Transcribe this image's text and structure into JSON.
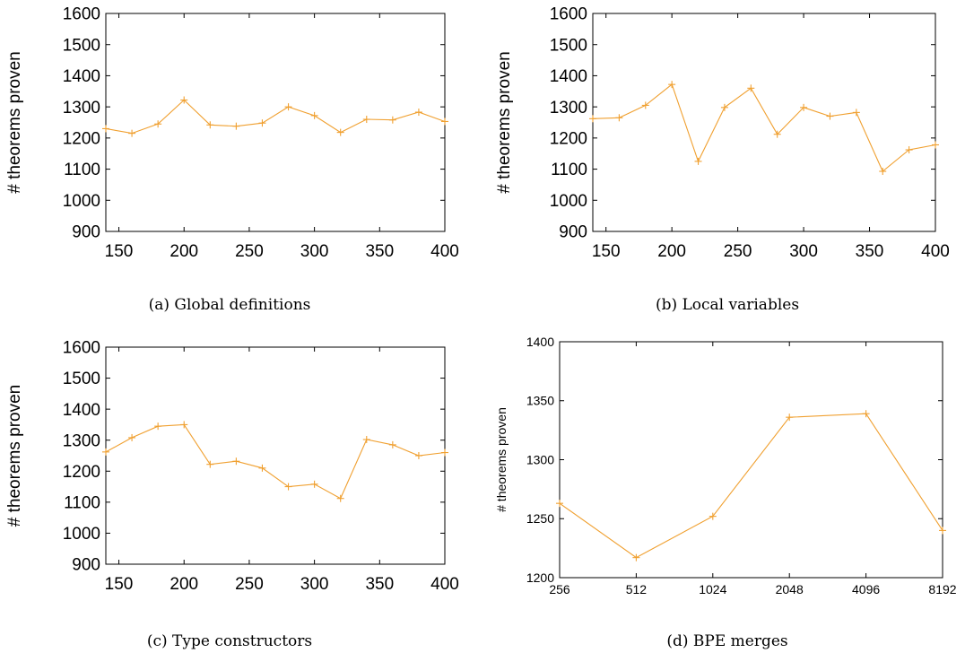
{
  "chart_data": [
    {
      "type": "line",
      "caption": "(a) Global definitions",
      "ylabel": "# theorems proven",
      "xlabel": "",
      "xlim": [
        140,
        400
      ],
      "ylim": [
        900,
        1600
      ],
      "xticks": [
        "150",
        "200",
        "250",
        "300",
        "350",
        "400"
      ],
      "yticks": [
        "900",
        "1000",
        "1100",
        "1200",
        "1300",
        "1400",
        "1500",
        "1600"
      ],
      "color": "#f0a030",
      "x": [
        140,
        160,
        180,
        200,
        220,
        240,
        260,
        280,
        300,
        320,
        340,
        360,
        380,
        400
      ],
      "y": [
        1230,
        1215,
        1245,
        1322,
        1242,
        1238,
        1248,
        1300,
        1272,
        1218,
        1260,
        1258,
        1283,
        1253
      ]
    },
    {
      "type": "line",
      "caption": "(b) Local variables",
      "ylabel": "# theorems proven",
      "xlabel": "",
      "xlim": [
        140,
        400
      ],
      "ylim": [
        900,
        1600
      ],
      "xticks": [
        "150",
        "200",
        "250",
        "300",
        "350",
        "400"
      ],
      "yticks": [
        "900",
        "1000",
        "1100",
        "1200",
        "1300",
        "1400",
        "1500",
        "1600"
      ],
      "color": "#f0a030",
      "x": [
        140,
        160,
        180,
        200,
        220,
        240,
        260,
        280,
        300,
        320,
        340,
        360,
        380,
        400
      ],
      "y": [
        1262,
        1265,
        1305,
        1372,
        1125,
        1298,
        1360,
        1212,
        1298,
        1270,
        1282,
        1093,
        1162,
        1178
      ]
    },
    {
      "type": "line",
      "caption": "(c) Type constructors",
      "ylabel": "# theorems proven",
      "xlabel": "",
      "xlim": [
        140,
        400
      ],
      "ylim": [
        900,
        1600
      ],
      "xticks": [
        "150",
        "200",
        "250",
        "300",
        "350",
        "400"
      ],
      "yticks": [
        "900",
        "1000",
        "1100",
        "1200",
        "1300",
        "1400",
        "1500",
        "1600"
      ],
      "color": "#f0a030",
      "x": [
        140,
        160,
        180,
        200,
        220,
        240,
        260,
        280,
        300,
        320,
        340,
        360,
        380,
        400
      ],
      "y": [
        1262,
        1308,
        1345,
        1350,
        1222,
        1232,
        1210,
        1150,
        1158,
        1112,
        1302,
        1285,
        1250,
        1260
      ]
    },
    {
      "type": "line",
      "caption": "(d) BPE merges",
      "ylabel": "# theorems proven",
      "xlabel": "",
      "xscale": "categorical",
      "ylim": [
        1200,
        1400
      ],
      "categories": [
        "256",
        "512",
        "1024",
        "2048",
        "4096",
        "8192"
      ],
      "yticks": [
        "1200",
        "1250",
        "1300",
        "1350",
        "1400"
      ],
      "color": "#f0a030",
      "values": [
        1263,
        1217,
        1252,
        1336,
        1339,
        1240
      ]
    }
  ]
}
